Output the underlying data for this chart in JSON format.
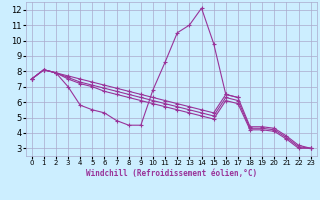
{
  "xlabel": "Windchill (Refroidissement éolien,°C)",
  "bg_color": "#cceeff",
  "grid_color": "#aaaacc",
  "line_color": "#993399",
  "xlim": [
    -0.5,
    23.5
  ],
  "ylim": [
    2.5,
    12.5
  ],
  "xticks": [
    0,
    1,
    2,
    3,
    4,
    5,
    6,
    7,
    8,
    9,
    10,
    11,
    12,
    13,
    14,
    15,
    16,
    17,
    18,
    19,
    20,
    21,
    22,
    23
  ],
  "yticks": [
    3,
    4,
    5,
    6,
    7,
    8,
    9,
    10,
    11,
    12
  ],
  "lines": [
    {
      "x": [
        0,
        1,
        2,
        3,
        4,
        5,
        6,
        7,
        8,
        9,
        10,
        11,
        12,
        13,
        14,
        15,
        16,
        17,
        18,
        19,
        20,
        21,
        22,
        23
      ],
      "y": [
        7.5,
        8.1,
        7.9,
        7.0,
        5.8,
        5.5,
        5.3,
        4.8,
        4.5,
        4.5,
        6.8,
        8.6,
        10.5,
        11.0,
        12.1,
        9.8,
        6.5,
        6.3,
        null,
        null,
        null,
        null,
        null,
        null
      ]
    },
    {
      "x": [
        0,
        1,
        2,
        3,
        4,
        5,
        6,
        7,
        8,
        9,
        10,
        11,
        12,
        13,
        14,
        15,
        16,
        17,
        18,
        19,
        20,
        21,
        22,
        23
      ],
      "y": [
        7.5,
        8.1,
        7.9,
        7.7,
        7.5,
        7.3,
        7.1,
        6.9,
        6.7,
        6.5,
        6.3,
        6.1,
        5.9,
        5.7,
        5.5,
        5.3,
        6.5,
        6.3,
        4.4,
        4.4,
        4.3,
        3.8,
        3.2,
        3.0
      ]
    },
    {
      "x": [
        0,
        1,
        2,
        3,
        4,
        5,
        6,
        7,
        8,
        9,
        10,
        11,
        12,
        13,
        14,
        15,
        16,
        17,
        18,
        19,
        20,
        21,
        22,
        23
      ],
      "y": [
        7.5,
        8.1,
        7.9,
        7.6,
        7.3,
        7.1,
        6.9,
        6.7,
        6.5,
        6.3,
        6.1,
        5.9,
        5.7,
        5.5,
        5.3,
        5.1,
        6.3,
        6.1,
        4.3,
        4.3,
        4.2,
        3.7,
        3.1,
        3.0
      ]
    },
    {
      "x": [
        0,
        1,
        2,
        3,
        4,
        5,
        6,
        7,
        8,
        9,
        10,
        11,
        12,
        13,
        14,
        15,
        16,
        17,
        18,
        19,
        20,
        21,
        22,
        23
      ],
      "y": [
        7.5,
        8.1,
        7.9,
        7.5,
        7.2,
        7.0,
        6.7,
        6.5,
        6.3,
        6.1,
        5.9,
        5.7,
        5.5,
        5.3,
        5.1,
        4.9,
        6.1,
        5.9,
        4.2,
        4.2,
        4.1,
        3.6,
        3.0,
        3.0
      ]
    }
  ]
}
